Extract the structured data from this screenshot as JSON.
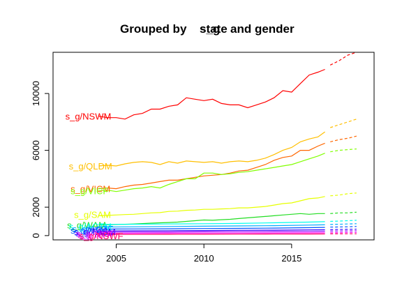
{
  "chart_data": {
    "type": "line",
    "title_parts": [
      "Grouped by ",
      "s_g",
      "state",
      " and gender"
    ],
    "xlabel": "",
    "ylabel": "",
    "xlim": [
      2001.4,
      2019.7
    ],
    "ylim": [
      -300,
      12900
    ],
    "x_ticks": [
      2005,
      2010,
      2015
    ],
    "y_ticks": [
      0,
      2000,
      6000,
      10000
    ],
    "grid": false,
    "legend": "none",
    "series": [
      {
        "name": "s_g/NSWM",
        "color": "#ff0000",
        "x": [
          2004.0,
          2004.5,
          2005.0,
          2005.5,
          2006.0,
          2006.5,
          2007.0,
          2007.5,
          2008.0,
          2008.5,
          2009.0,
          2009.5,
          2010.0,
          2010.5,
          2011.0,
          2011.5,
          2012.0,
          2012.5,
          2013.0,
          2013.5,
          2014.0,
          2014.5,
          2015.0,
          2015.5,
          2016.0,
          2016.5,
          2016.9
        ],
        "y": [
          8400,
          8300,
          8300,
          8200,
          8500,
          8600,
          8900,
          8900,
          9100,
          9200,
          9700,
          9600,
          9500,
          9600,
          9300,
          9200,
          9200,
          9000,
          9200,
          9400,
          9700,
          10200,
          10100,
          10700,
          11300,
          11500,
          11700
        ],
        "fx": [
          2017.2,
          2017.7,
          2018.2,
          2018.7
        ],
        "fy": [
          12000,
          12300,
          12700,
          12900
        ]
      },
      {
        "name": "s_g/QLDM",
        "color": "#ffbf00",
        "x": [
          2004.0,
          2004.5,
          2005.0,
          2005.5,
          2006.0,
          2006.5,
          2007.0,
          2007.5,
          2008.0,
          2008.5,
          2009.0,
          2009.5,
          2010.0,
          2010.5,
          2011.0,
          2011.5,
          2012.0,
          2012.5,
          2013.0,
          2013.5,
          2014.0,
          2014.5,
          2015.0,
          2015.5,
          2016.0,
          2016.5,
          2016.9
        ],
        "y": [
          4900,
          4950,
          4900,
          5050,
          5150,
          5200,
          5150,
          5000,
          5200,
          5100,
          5250,
          5200,
          5150,
          5200,
          5100,
          5200,
          5250,
          5200,
          5300,
          5450,
          5700,
          6000,
          6200,
          6600,
          6800,
          6950,
          7300
        ],
        "fx": [
          2017.2,
          2017.7,
          2018.2,
          2018.7
        ],
        "fy": [
          7600,
          7800,
          8000,
          8200
        ]
      },
      {
        "name": "s_g/VICM",
        "color": "#ff6600",
        "x": [
          2004.0,
          2004.5,
          2005.0,
          2005.5,
          2006.0,
          2006.5,
          2007.0,
          2007.5,
          2008.0,
          2008.5,
          2009.0,
          2009.5,
          2010.0,
          2010.5,
          2011.0,
          2011.5,
          2012.0,
          2012.5,
          2013.0,
          2013.5,
          2014.0,
          2014.5,
          2015.0,
          2015.5,
          2016.0,
          2016.5,
          2016.9
        ],
        "y": [
          3300,
          3350,
          3300,
          3450,
          3550,
          3600,
          3700,
          3800,
          3900,
          3900,
          4000,
          4100,
          4200,
          4250,
          4300,
          4400,
          4550,
          4600,
          4800,
          5000,
          5300,
          5500,
          5600,
          6000,
          6000,
          6300,
          6500
        ],
        "fx": [
          2017.2,
          2017.7,
          2018.2,
          2018.7
        ],
        "fy": [
          6600,
          6750,
          6850,
          7000
        ]
      },
      {
        "name": "s_g/VICF",
        "color": "#80ff00",
        "x": [
          2004.0,
          2004.5,
          2005.0,
          2005.5,
          2006.0,
          2006.5,
          2007.0,
          2007.5,
          2008.0,
          2008.5,
          2009.0,
          2009.5,
          2010.0,
          2010.5,
          2011.0,
          2011.5,
          2012.0,
          2012.5,
          2013.0,
          2013.5,
          2014.0,
          2014.5,
          2015.0,
          2015.5,
          2016.0,
          2016.5,
          2016.9
        ],
        "y": [
          3150,
          3200,
          3100,
          3200,
          3300,
          3350,
          3450,
          3350,
          3600,
          3800,
          4000,
          4000,
          4400,
          4400,
          4300,
          4350,
          4450,
          4500,
          4600,
          4700,
          4800,
          4900,
          5000,
          5200,
          5400,
          5600,
          5800
        ],
        "fx": [
          2017.2,
          2017.7,
          2018.2,
          2018.7
        ],
        "fy": [
          5900,
          6000,
          6050,
          6100
        ]
      },
      {
        "name": "s_g/SAM",
        "color": "#e6ff00",
        "x": [
          2004.0,
          2004.5,
          2005.0,
          2005.5,
          2006.0,
          2006.5,
          2007.0,
          2007.5,
          2008.0,
          2008.5,
          2009.0,
          2009.5,
          2010.0,
          2010.5,
          2011.0,
          2011.5,
          2012.0,
          2012.5,
          2013.0,
          2013.5,
          2014.0,
          2014.5,
          2015.0,
          2015.5,
          2016.0,
          2016.5,
          2016.9
        ],
        "y": [
          1400,
          1420,
          1450,
          1480,
          1500,
          1550,
          1600,
          1620,
          1700,
          1720,
          1780,
          1800,
          1850,
          1850,
          1880,
          1900,
          1950,
          1950,
          2000,
          2050,
          2150,
          2250,
          2300,
          2450,
          2600,
          2650,
          2750
        ],
        "fx": [
          2017.2,
          2017.7,
          2018.2,
          2018.7
        ],
        "fy": [
          2800,
          2850,
          2950,
          3000
        ]
      },
      {
        "name": "s_g/WAM",
        "color": "#22dd22",
        "x": [
          2004.0,
          2004.5,
          2005.0,
          2005.5,
          2006.0,
          2006.5,
          2007.0,
          2007.5,
          2008.0,
          2008.5,
          2009.0,
          2009.5,
          2010.0,
          2010.5,
          2011.0,
          2011.5,
          2012.0,
          2012.5,
          2013.0,
          2013.5,
          2014.0,
          2014.5,
          2015.0,
          2015.5,
          2016.0,
          2016.5,
          2016.9
        ],
        "y": [
          750,
          760,
          780,
          800,
          820,
          850,
          880,
          900,
          920,
          950,
          1000,
          1050,
          1100,
          1080,
          1120,
          1150,
          1200,
          1250,
          1300,
          1350,
          1400,
          1450,
          1500,
          1550,
          1500,
          1550,
          1550
        ],
        "fx": [
          2017.2,
          2017.7,
          2018.2,
          2018.7
        ],
        "fy": [
          1550,
          1600,
          1600,
          1650
        ]
      },
      {
        "name": "s_g/ACTM",
        "color": "#00ffee",
        "x": [
          2004.0,
          2006.0,
          2008.0,
          2010.0,
          2012.0,
          2014.0,
          2016.0,
          2016.9
        ],
        "y": [
          780,
          800,
          820,
          840,
          860,
          900,
          950,
          980
        ],
        "fx": [
          2017.2,
          2017.7,
          2018.2,
          2018.7
        ],
        "fy": [
          1000,
          1020,
          1050,
          1080
        ]
      },
      {
        "name": "s_g/ACTF",
        "color": "#00aaff",
        "x": [
          2004.0,
          2006.0,
          2008.0,
          2010.0,
          2012.0,
          2014.0,
          2016.0,
          2016.9
        ],
        "y": [
          600,
          620,
          640,
          660,
          680,
          700,
          740,
          760
        ],
        "fx": [
          2017.2,
          2017.7,
          2018.2,
          2018.7
        ],
        "fy": [
          780,
          800,
          820,
          840
        ]
      },
      {
        "name": "s_g/NTM",
        "color": "#0055ff",
        "x": [
          2004.0,
          2006.0,
          2008.0,
          2010.0,
          2012.0,
          2014.0,
          2016.0,
          2016.9
        ],
        "y": [
          460,
          470,
          480,
          500,
          510,
          530,
          560,
          580
        ],
        "fx": [
          2017.2,
          2017.7,
          2018.2,
          2018.7
        ],
        "fy": [
          600,
          610,
          620,
          640
        ]
      },
      {
        "name": "s_g/TASM",
        "color": "#3300ff",
        "x": [
          2004.0,
          2006.0,
          2008.0,
          2010.0,
          2012.0,
          2014.0,
          2016.0,
          2016.9
        ],
        "y": [
          330,
          340,
          350,
          360,
          370,
          380,
          400,
          410
        ],
        "fx": [
          2017.2,
          2017.7,
          2018.2,
          2018.7
        ],
        "fy": [
          420,
          430,
          440,
          450
        ]
      },
      {
        "name": "s_g/TASF",
        "color": "#9900ff",
        "x": [
          2004.0,
          2006.0,
          2008.0,
          2010.0,
          2012.0,
          2014.0,
          2016.0,
          2016.9
        ],
        "y": [
          250,
          255,
          260,
          270,
          280,
          290,
          300,
          310
        ],
        "fx": [
          2017.2,
          2017.7,
          2018.2,
          2018.7
        ],
        "fy": [
          320,
          325,
          330,
          340
        ]
      },
      {
        "name": "s_g/NTF",
        "color": "#ff00ee",
        "x": [
          2004.0,
          2006.0,
          2008.0,
          2010.0,
          2012.0,
          2014.0,
          2016.0,
          2016.9
        ],
        "y": [
          160,
          165,
          170,
          175,
          180,
          185,
          195,
          200
        ],
        "fx": [
          2017.2,
          2017.7,
          2018.2,
          2018.7
        ],
        "fy": [
          205,
          210,
          215,
          220
        ]
      },
      {
        "name": "s_g/NSWF",
        "color": "#ff0066",
        "x": [
          2004.0,
          2006.0,
          2008.0,
          2010.0,
          2012.0,
          2014.0,
          2016.0,
          2016.9
        ],
        "y": [
          80,
          85,
          90,
          95,
          100,
          105,
          110,
          115
        ],
        "fx": [
          2017.2,
          2017.7,
          2018.2,
          2018.7
        ],
        "fy": [
          120,
          122,
          125,
          128
        ]
      }
    ],
    "label_positions": [
      {
        "series": 0,
        "x": 2002.1,
        "y": 8400
      },
      {
        "series": 1,
        "x": 2002.3,
        "y": 4900
      },
      {
        "series": 2,
        "x": 2002.4,
        "y": 3300
      },
      {
        "series": 3,
        "x": 2002.4,
        "y": 3150
      },
      {
        "series": 4,
        "x": 2002.6,
        "y": 1500
      },
      {
        "series": 5,
        "x": 2002.2,
        "y": 750
      },
      {
        "series": 6,
        "x": 2002.3,
        "y": 650
      },
      {
        "series": 7,
        "x": 2002.5,
        "y": 480
      },
      {
        "series": 8,
        "x": 2002.4,
        "y": 380
      },
      {
        "series": 9,
        "x": 2002.6,
        "y": 280
      },
      {
        "series": 10,
        "x": 2002.7,
        "y": 170
      },
      {
        "series": 11,
        "x": 2002.8,
        "y": 60
      },
      {
        "series": 12,
        "x": 2002.9,
        "y": -10
      }
    ]
  }
}
